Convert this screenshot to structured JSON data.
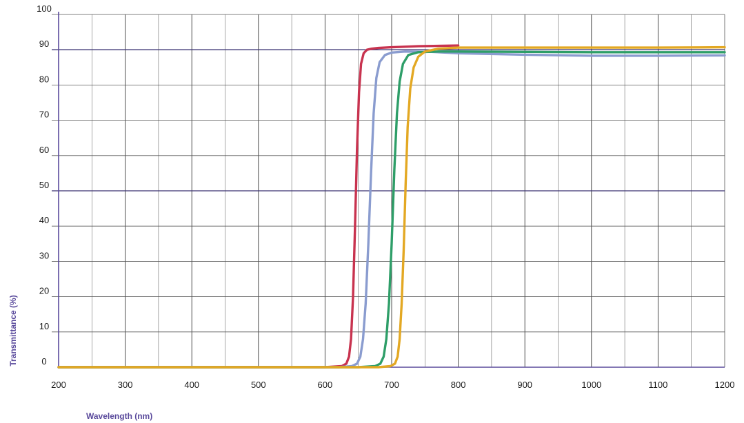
{
  "chart_data": {
    "type": "line",
    "xlabel": "Wavelength (nm)",
    "ylabel": "Transmittance (%)",
    "xlim": [
      200,
      1200
    ],
    "ylim": [
      0,
      100
    ],
    "x_ticks": [
      "200",
      "300",
      "400",
      "500",
      "600",
      "700",
      "800",
      "900",
      "1000",
      "1100",
      "1200"
    ],
    "y_ticks": [
      "0",
      "10",
      "20",
      "30",
      "40",
      "50",
      "60",
      "70",
      "80",
      "90",
      "100"
    ],
    "grid": true,
    "series": [
      {
        "color": "#c8334f",
        "x": [
          200,
          600,
          625,
          632,
          636,
          639,
          642,
          645,
          648,
          651,
          654,
          658,
          663,
          670,
          680,
          700,
          740,
          800
        ],
        "y": [
          0,
          0,
          0.3,
          1,
          3,
          8,
          20,
          40,
          62,
          78,
          86,
          89,
          90,
          90.3,
          90.5,
          90.7,
          91,
          91.2
        ]
      },
      {
        "color": "#8a9ccf",
        "x": [
          200,
          620,
          640,
          648,
          653,
          657,
          661,
          665,
          669,
          673,
          677,
          682,
          690,
          700,
          720,
          760,
          800,
          900,
          1000,
          1100,
          1200
        ],
        "y": [
          0,
          0,
          0.3,
          1,
          3,
          8,
          18,
          35,
          55,
          72,
          82,
          86.5,
          88.5,
          89.2,
          89.5,
          89.4,
          89,
          88.6,
          88.3,
          88.3,
          88.4
        ]
      },
      {
        "color": "#2e9e68",
        "x": [
          200,
          650,
          675,
          683,
          688,
          692,
          696,
          700,
          704,
          708,
          712,
          717,
          725,
          740,
          770,
          800,
          900,
          1000,
          1100,
          1200
        ],
        "y": [
          0,
          0,
          0.3,
          1,
          3,
          8,
          18,
          35,
          56,
          72,
          81,
          86,
          88.5,
          89.3,
          89.5,
          89.5,
          89.4,
          89.3,
          89.3,
          89.3
        ]
      },
      {
        "color": "#e3a823",
        "x": [
          200,
          680,
          698,
          705,
          709,
          712,
          715,
          718,
          721,
          724,
          728,
          733,
          740,
          750,
          770,
          800,
          900,
          1000,
          1100,
          1200
        ],
        "y": [
          0,
          0,
          0.3,
          1,
          3,
          8,
          18,
          33,
          52,
          68,
          79,
          85,
          88,
          89.5,
          90.3,
          90.6,
          90.6,
          90.6,
          90.6,
          90.7
        ]
      }
    ]
  }
}
